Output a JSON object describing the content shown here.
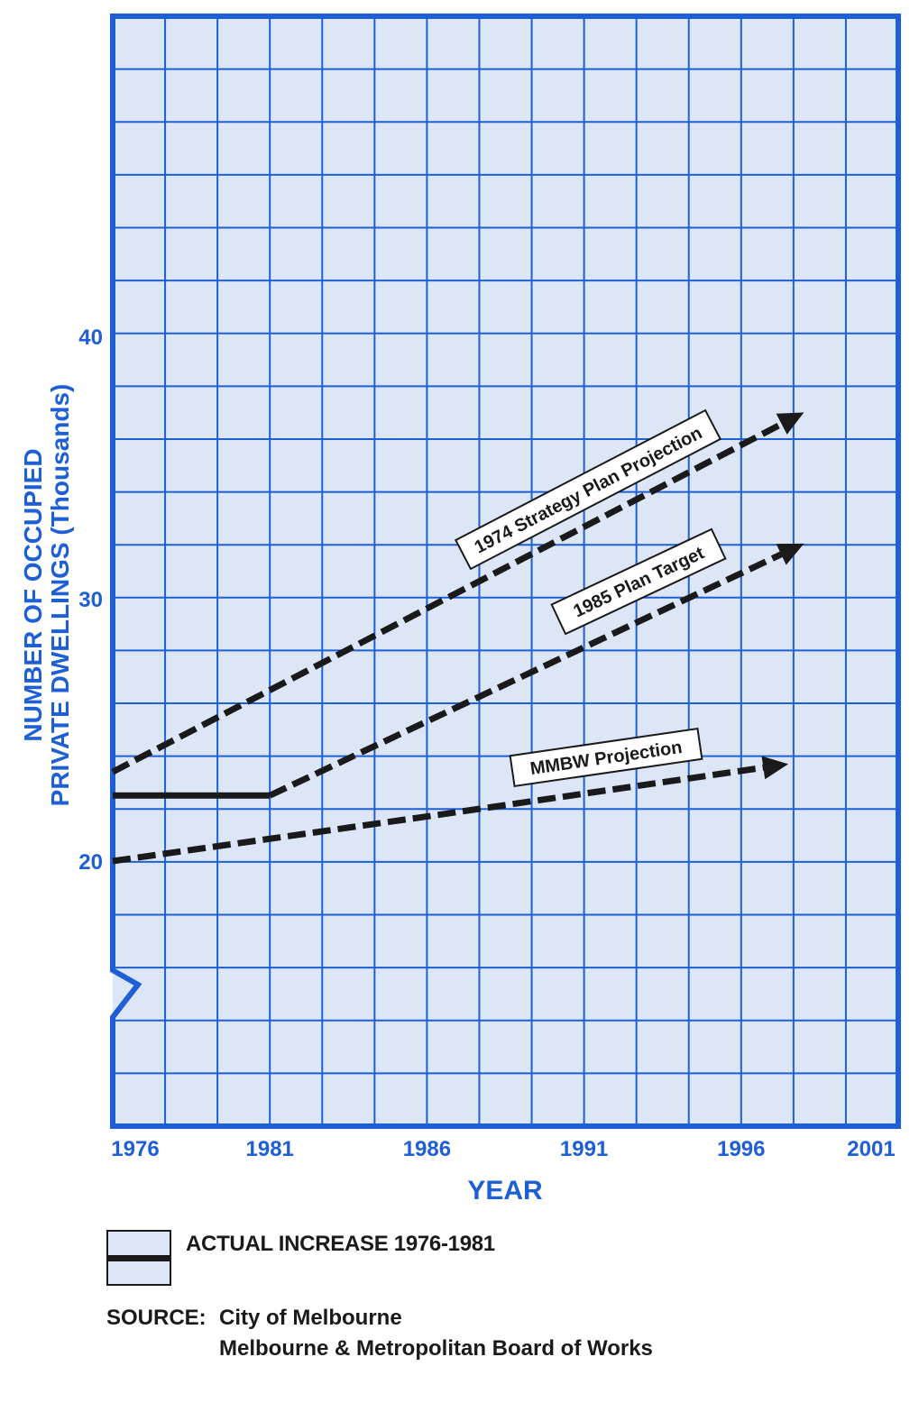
{
  "chart_data": {
    "type": "line",
    "xlabel": "YEAR",
    "ylabel_line1": "NUMBER OF OCCUPIED",
    "ylabel_line2": "PRIVATE DWELLINGS (Thousands)",
    "x_ticks": [
      1976,
      1981,
      1986,
      1991,
      1996,
      2001
    ],
    "y_ticks": [
      20,
      30,
      40
    ],
    "xlim": [
      1976,
      2001
    ],
    "grid": true,
    "y_axis_break": true,
    "colors": {
      "grid": "#1f5fd6",
      "background": "#dde6f6",
      "lines": "#1a1a1a",
      "axis_text": "#1f5fd6"
    },
    "series": [
      {
        "name": "1974 Strategy Plan Projection",
        "style": "dashed-arrow",
        "x": [
          1976,
          1998
        ],
        "y": [
          23.4,
          37.1
        ]
      },
      {
        "name": "1985 Plan Target",
        "style": "dashed-arrow",
        "x": [
          1981,
          1998
        ],
        "y": [
          22.5,
          32.1
        ]
      },
      {
        "name": "MMBW Projection",
        "style": "dashed-arrow",
        "x": [
          1976,
          1986,
          1997.5
        ],
        "y": [
          20.0,
          21.7,
          23.7
        ]
      },
      {
        "name": "ACTUAL INCREASE 1976-1981",
        "style": "solid",
        "x": [
          1976,
          1981
        ],
        "y": [
          22.5,
          22.5
        ]
      }
    ]
  },
  "legend": {
    "label": "ACTUAL INCREASE 1976-1981"
  },
  "source": {
    "label": "SOURCE:",
    "line1": "City of Melbourne",
    "line2": "Melbourne & Metropolitan Board of Works"
  }
}
